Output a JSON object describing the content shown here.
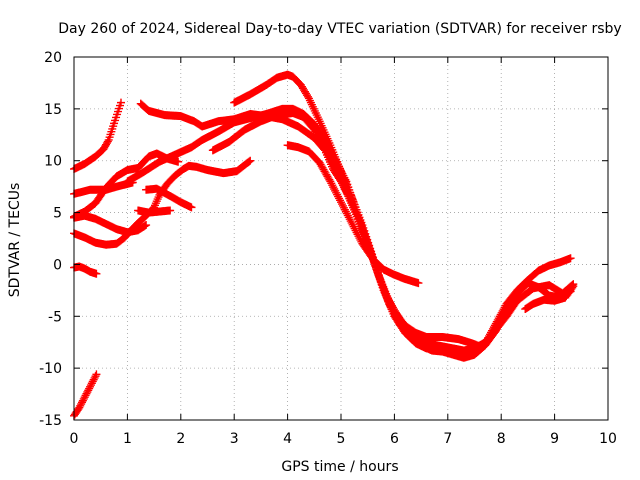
{
  "chart_data": {
    "type": "scatter",
    "title": "Day 260 of 2024, Sidereal Day-to-day VTEC variation (SDTVAR) for receiver rsby",
    "xlabel": "GPS time / hours",
    "ylabel": "SDTVAR / TECUs",
    "xlim": [
      0,
      10
    ],
    "ylim": [
      -15,
      20
    ],
    "xticks": [
      "0",
      "1",
      "2",
      "3",
      "4",
      "5",
      "6",
      "7",
      "8",
      "9",
      "10"
    ],
    "yticks": [
      "-15",
      "-10",
      "-5",
      "0",
      "5",
      "10",
      "15",
      "20"
    ],
    "grid": true,
    "marker": "plus",
    "color": "#ff0000",
    "series": [
      {
        "name": "s1",
        "points": [
          [
            0.0,
            -14.6
          ],
          [
            0.1,
            -13.8
          ],
          [
            0.2,
            -12.8
          ],
          [
            0.3,
            -11.8
          ],
          [
            0.42,
            -10.6
          ]
        ]
      },
      {
        "name": "s2",
        "points": [
          [
            0.0,
            -0.3
          ],
          [
            0.1,
            -0.2
          ],
          [
            0.2,
            -0.4
          ],
          [
            0.3,
            -0.7
          ],
          [
            0.42,
            -0.9
          ]
        ]
      },
      {
        "name": "s3",
        "points": [
          [
            0.0,
            9.2
          ],
          [
            0.2,
            9.7
          ],
          [
            0.4,
            10.4
          ],
          [
            0.55,
            11.1
          ],
          [
            0.65,
            12.0
          ],
          [
            0.75,
            13.6
          ],
          [
            0.88,
            15.6
          ]
        ]
      },
      {
        "name": "s4",
        "points": [
          [
            0.0,
            6.8
          ],
          [
            0.3,
            7.2
          ],
          [
            0.6,
            7.2
          ],
          [
            0.8,
            7.5
          ],
          [
            1.1,
            7.9
          ]
        ]
      },
      {
        "name": "s5",
        "points": [
          [
            0.0,
            4.5
          ],
          [
            0.2,
            4.7
          ],
          [
            0.4,
            4.4
          ],
          [
            0.6,
            3.9
          ],
          [
            0.8,
            3.4
          ],
          [
            1.0,
            3.1
          ],
          [
            1.2,
            3.3
          ],
          [
            1.35,
            3.8
          ]
        ]
      },
      {
        "name": "s6",
        "points": [
          [
            0.0,
            3.0
          ],
          [
            0.2,
            2.6
          ],
          [
            0.4,
            2.1
          ],
          [
            0.6,
            1.9
          ],
          [
            0.8,
            2.0
          ],
          [
            0.95,
            2.6
          ],
          [
            1.05,
            3.2
          ],
          [
            1.2,
            4.0
          ],
          [
            1.35,
            4.7
          ],
          [
            1.5,
            5.5
          ],
          [
            1.6,
            6.7
          ],
          [
            1.75,
            7.8
          ],
          [
            1.9,
            8.6
          ],
          [
            2.05,
            9.2
          ],
          [
            2.15,
            9.5
          ],
          [
            2.3,
            9.4
          ],
          [
            2.5,
            9.1
          ],
          [
            2.8,
            8.8
          ],
          [
            3.05,
            9.0
          ],
          [
            3.3,
            10.0
          ]
        ]
      },
      {
        "name": "s7",
        "points": [
          [
            0.0,
            4.6
          ],
          [
            0.2,
            5.1
          ],
          [
            0.4,
            5.9
          ],
          [
            0.6,
            7.4
          ],
          [
            0.8,
            8.5
          ],
          [
            1.0,
            9.1
          ],
          [
            1.2,
            9.3
          ],
          [
            1.4,
            10.4
          ],
          [
            1.55,
            10.7
          ],
          [
            1.75,
            10.2
          ],
          [
            1.95,
            9.9
          ]
        ]
      },
      {
        "name": "s8",
        "points": [
          [
            1.35,
            7.2
          ],
          [
            1.55,
            7.3
          ],
          [
            1.8,
            6.6
          ],
          [
            2.0,
            6.0
          ],
          [
            2.2,
            5.5
          ]
        ]
      },
      {
        "name": "s9",
        "points": [
          [
            1.2,
            5.2
          ],
          [
            1.4,
            5.0
          ],
          [
            1.6,
            5.1
          ],
          [
            1.8,
            5.2
          ]
        ]
      },
      {
        "name": "s10",
        "points": [
          [
            1.25,
            15.5
          ],
          [
            1.4,
            14.8
          ],
          [
            1.7,
            14.4
          ],
          [
            2.0,
            14.3
          ],
          [
            2.25,
            13.8
          ],
          [
            2.4,
            13.3
          ],
          [
            2.7,
            13.8
          ],
          [
            3.0,
            14.0
          ],
          [
            3.3,
            14.5
          ],
          [
            3.6,
            14.3
          ],
          [
            3.9,
            14.0
          ],
          [
            4.2,
            13.3
          ],
          [
            4.5,
            12.2
          ],
          [
            4.7,
            11.0
          ],
          [
            4.85,
            9.2
          ],
          [
            5.0,
            8.0
          ],
          [
            5.2,
            6.0
          ],
          [
            5.4,
            3.5
          ],
          [
            5.6,
            0.5
          ],
          [
            5.8,
            -2.5
          ],
          [
            6.0,
            -4.5
          ],
          [
            6.2,
            -5.9
          ],
          [
            6.4,
            -6.6
          ],
          [
            6.6,
            -7.0
          ],
          [
            6.9,
            -7.0
          ],
          [
            7.2,
            -7.2
          ],
          [
            7.45,
            -7.6
          ],
          [
            7.6,
            -7.9
          ]
        ]
      },
      {
        "name": "s11",
        "points": [
          [
            1.0,
            8.0
          ],
          [
            1.3,
            8.9
          ],
          [
            1.6,
            9.9
          ],
          [
            1.9,
            10.6
          ],
          [
            2.2,
            11.3
          ],
          [
            2.4,
            12.0
          ],
          [
            2.7,
            12.8
          ],
          [
            3.0,
            13.7
          ],
          [
            3.3,
            14.1
          ],
          [
            3.6,
            14.5
          ],
          [
            3.9,
            15.0
          ],
          [
            4.1,
            15.0
          ],
          [
            4.3,
            14.5
          ],
          [
            4.5,
            13.5
          ],
          [
            4.7,
            12.0
          ],
          [
            4.9,
            10.0
          ],
          [
            5.1,
            8.0
          ],
          [
            5.3,
            5.0
          ],
          [
            5.5,
            2.0
          ],
          [
            5.7,
            -1.0
          ],
          [
            5.9,
            -3.5
          ],
          [
            6.1,
            -5.3
          ],
          [
            6.3,
            -6.5
          ],
          [
            6.5,
            -7.3
          ],
          [
            6.7,
            -7.7
          ],
          [
            7.0,
            -8.0
          ],
          [
            7.3,
            -8.3
          ],
          [
            7.5,
            -8.1
          ],
          [
            7.7,
            -7.5
          ],
          [
            7.9,
            -6.3
          ],
          [
            8.1,
            -5.0
          ],
          [
            8.3,
            -3.5
          ],
          [
            8.6,
            -2.3
          ],
          [
            8.9,
            -2.0
          ],
          [
            9.15,
            -2.8
          ],
          [
            9.35,
            -1.9
          ]
        ]
      },
      {
        "name": "s12",
        "points": [
          [
            3.0,
            15.6
          ],
          [
            3.3,
            16.4
          ],
          [
            3.6,
            17.3
          ],
          [
            3.8,
            18.0
          ],
          [
            4.0,
            18.3
          ],
          [
            4.1,
            18.1
          ],
          [
            4.25,
            17.3
          ],
          [
            4.4,
            16.0
          ],
          [
            4.6,
            13.8
          ],
          [
            4.8,
            11.5
          ],
          [
            5.0,
            9.0
          ],
          [
            5.2,
            6.5
          ],
          [
            5.4,
            3.8
          ],
          [
            5.6,
            0.7
          ],
          [
            5.8,
            -2.5
          ],
          [
            6.0,
            -5.0
          ],
          [
            6.2,
            -6.6
          ],
          [
            6.4,
            -7.6
          ],
          [
            6.6,
            -8.1
          ],
          [
            6.9,
            -8.0
          ],
          [
            7.1,
            -8.4
          ],
          [
            7.3,
            -8.8
          ],
          [
            7.5,
            -8.4
          ],
          [
            7.7,
            -7.6
          ],
          [
            7.9,
            -5.7
          ],
          [
            8.1,
            -3.8
          ],
          [
            8.3,
            -2.5
          ],
          [
            8.5,
            -1.5
          ],
          [
            8.7,
            -0.6
          ],
          [
            8.9,
            -0.1
          ],
          [
            9.1,
            0.2
          ],
          [
            9.3,
            0.6
          ]
        ]
      },
      {
        "name": "s13",
        "points": [
          [
            2.6,
            11.0
          ],
          [
            2.9,
            11.8
          ],
          [
            3.2,
            13.0
          ],
          [
            3.5,
            13.8
          ],
          [
            3.8,
            14.4
          ],
          [
            4.1,
            14.6
          ],
          [
            4.3,
            14.2
          ],
          [
            4.5,
            13.0
          ],
          [
            4.7,
            11.2
          ],
          [
            4.9,
            9.2
          ],
          [
            5.1,
            7.0
          ],
          [
            5.3,
            4.6
          ],
          [
            5.5,
            2.0
          ],
          [
            5.7,
            -1.0
          ],
          [
            5.9,
            -3.8
          ],
          [
            6.1,
            -5.8
          ],
          [
            6.3,
            -7.0
          ],
          [
            6.5,
            -7.8
          ],
          [
            6.7,
            -8.3
          ],
          [
            6.9,
            -8.4
          ],
          [
            7.1,
            -8.7
          ],
          [
            7.3,
            -9.0
          ],
          [
            7.5,
            -8.7
          ],
          [
            7.7,
            -7.8
          ],
          [
            7.9,
            -6.4
          ],
          [
            8.1,
            -4.5
          ],
          [
            8.3,
            -2.8
          ],
          [
            8.5,
            -1.8
          ],
          [
            8.7,
            -2.2
          ],
          [
            8.9,
            -3.0
          ],
          [
            9.1,
            -3.2
          ],
          [
            9.3,
            -2.6
          ]
        ]
      },
      {
        "name": "s14",
        "points": [
          [
            4.0,
            11.5
          ],
          [
            4.2,
            11.3
          ],
          [
            4.4,
            10.9
          ],
          [
            4.6,
            9.8
          ],
          [
            4.8,
            8.0
          ],
          [
            5.0,
            6.0
          ],
          [
            5.2,
            4.0
          ],
          [
            5.4,
            2.0
          ],
          [
            5.6,
            0.5
          ],
          [
            5.8,
            -0.5
          ],
          [
            6.0,
            -1.0
          ],
          [
            6.2,
            -1.4
          ],
          [
            6.45,
            -1.8
          ]
        ]
      },
      {
        "name": "s15",
        "points": [
          [
            8.45,
            -4.3
          ],
          [
            8.6,
            -3.8
          ],
          [
            8.8,
            -3.4
          ],
          [
            9.0,
            -3.5
          ],
          [
            9.2,
            -3.2
          ],
          [
            9.35,
            -2.1
          ]
        ]
      }
    ]
  }
}
